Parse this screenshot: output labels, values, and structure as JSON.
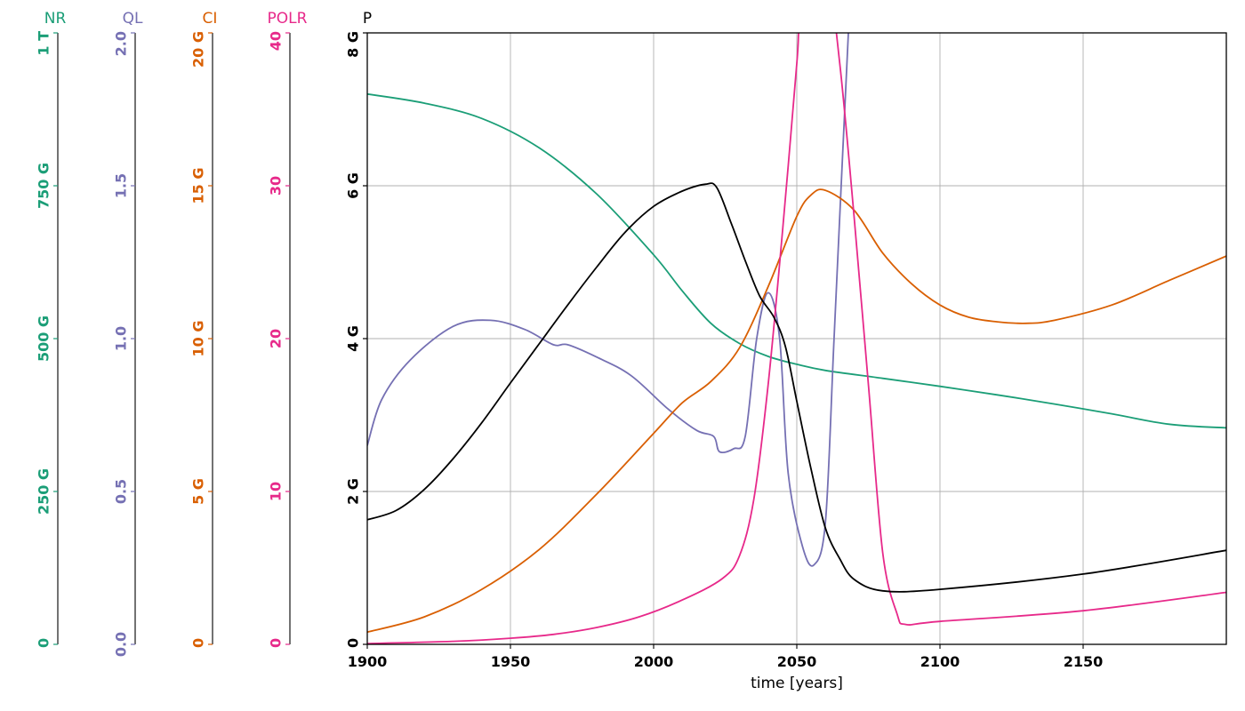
{
  "chart_data": {
    "type": "line",
    "xlabel": "time [years]",
    "x_range": [
      1900,
      2200
    ],
    "x_ticks": [
      1900,
      1950,
      2000,
      2050,
      2100,
      2150
    ],
    "grid": true,
    "axes": [
      {
        "name": "NR",
        "color": "#1b9e77",
        "range": [
          0,
          1000000000000
        ],
        "ticks": [
          0,
          250000000000,
          500000000000,
          750000000000,
          1000000000000
        ],
        "tick_labels": [
          "0",
          "250 G",
          "500 G",
          "750 G",
          "1 T"
        ]
      },
      {
        "name": "QL",
        "color": "#7570b3",
        "range": [
          0,
          2
        ],
        "ticks": [
          0,
          0.5,
          1,
          1.5,
          2
        ],
        "tick_labels": [
          "0.0",
          "0.5",
          "1.0",
          "1.5",
          "2.0"
        ]
      },
      {
        "name": "CI",
        "color": "#d95f02",
        "range": [
          0,
          20000000000
        ],
        "ticks": [
          0,
          5000000000,
          10000000000,
          15000000000,
          20000000000
        ],
        "tick_labels": [
          "0",
          "5 G",
          "10 G",
          "15 G",
          "20 G"
        ]
      },
      {
        "name": "POLR",
        "color": "#e7298a",
        "range": [
          0,
          40
        ],
        "ticks": [
          0,
          10,
          20,
          30,
          40
        ],
        "tick_labels": [
          "0",
          "10",
          "20",
          "30",
          "40"
        ]
      },
      {
        "name": "P",
        "color": "#000000",
        "range": [
          0,
          8000000000
        ],
        "ticks": [
          0,
          2000000000,
          4000000000,
          6000000000,
          8000000000
        ],
        "tick_labels": [
          "0",
          "2 G",
          "4 G",
          "6 G",
          "8 G"
        ]
      }
    ],
    "series": [
      {
        "name": "NR",
        "axis": 0,
        "color": "#1b9e77",
        "x": [
          1900,
          1920,
          1940,
          1960,
          1980,
          2000,
          2010,
          2020,
          2030,
          2040,
          2050,
          2060,
          2080,
          2100,
          2120,
          2140,
          2160,
          2180,
          2200
        ],
        "y": [
          900000000000,
          885000000000,
          860000000000,
          812000000000,
          737000000000,
          637000000000,
          578000000000,
          525000000000,
          492000000000,
          471000000000,
          458000000000,
          448000000000,
          435000000000,
          422000000000,
          408000000000,
          393000000000,
          377000000000,
          360000000000,
          354000000000
        ]
      },
      {
        "name": "QL",
        "axis": 1,
        "color": "#7570b3",
        "x": [
          1900,
          1905,
          1915,
          1930,
          1943,
          1955,
          1965,
          1970,
          1980,
          1992,
          2005,
          2015,
          2021,
          2023,
          2028,
          2032,
          2036,
          2040,
          2044,
          2047,
          2052,
          2056,
          2060,
          2063,
          2066,
          2068,
          2069
        ],
        "y": [
          0.65,
          0.8,
          0.93,
          1.04,
          1.06,
          1.03,
          0.98,
          0.98,
          0.94,
          0.88,
          0.77,
          0.7,
          0.68,
          0.63,
          0.64,
          0.68,
          1.0,
          1.15,
          1.0,
          0.56,
          0.32,
          0.26,
          0.4,
          1.0,
          1.6,
          2.0,
          2.2
        ]
      },
      {
        "name": "CI",
        "axis": 2,
        "color": "#d95f02",
        "x": [
          1900,
          1920,
          1940,
          1960,
          1980,
          2000,
          2010,
          2020,
          2030,
          2040,
          2050,
          2055,
          2060,
          2070,
          2080,
          2090,
          2100,
          2110,
          2120,
          2130,
          2140,
          2160,
          2180,
          2200
        ],
        "y": [
          400000000,
          900000000,
          1800000000,
          3100000000,
          4900000000,
          6900000000,
          7900000000,
          8600000000,
          9700000000,
          11700000000,
          14000000000,
          14700000000,
          14850000000,
          14200000000,
          12800000000,
          11800000000,
          11100000000,
          10700000000,
          10550000000,
          10500000000,
          10600000000,
          11100000000,
          11900000000,
          12700000000
        ]
      },
      {
        "name": "POLR",
        "axis": 3,
        "color": "#e7298a",
        "x": [
          1900,
          1930,
          1950,
          1965,
          1980,
          1995,
          2010,
          2024,
          2030,
          2035,
          2040,
          2045,
          2050,
          2051,
          2055,
          2060,
          2065,
          2070,
          2075,
          2080,
          2085,
          2088,
          2100,
          2150,
          2200
        ],
        "y": [
          0.05,
          0.2,
          0.4,
          0.65,
          1.1,
          1.8,
          2.9,
          4.3,
          5.8,
          9.5,
          17.0,
          27.0,
          38.0,
          40.5,
          44.0,
          45.0,
          38.0,
          28.0,
          17.0,
          6.0,
          2.0,
          1.3,
          1.5,
          2.2,
          3.4
        ]
      },
      {
        "name": "P",
        "axis": 4,
        "color": "#000000",
        "x": [
          1900,
          1910,
          1920,
          1930,
          1940,
          1950,
          1960,
          1970,
          1980,
          1990,
          2000,
          2010,
          2018,
          2022,
          2027,
          2032,
          2037,
          2042,
          2046,
          2050,
          2055,
          2060,
          2065,
          2070,
          2080,
          2100,
          2150,
          2200
        ],
        "y": [
          1630000000,
          1750000000,
          2030000000,
          2430000000,
          2900000000,
          3420000000,
          3930000000,
          4440000000,
          4930000000,
          5390000000,
          5730000000,
          5930000000,
          6020000000,
          5980000000,
          5520000000,
          5020000000,
          4560000000,
          4280000000,
          3900000000,
          3180000000,
          2290000000,
          1520000000,
          1120000000,
          850000000,
          700000000,
          720000000,
          920000000,
          1230000000
        ]
      }
    ]
  }
}
